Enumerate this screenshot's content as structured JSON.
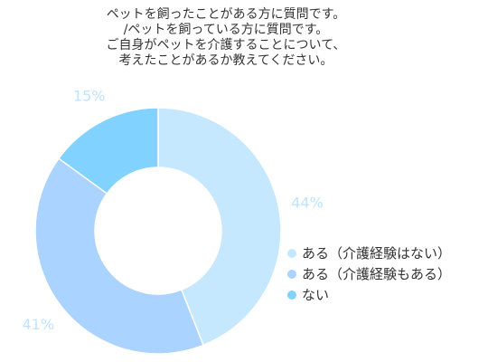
{
  "chart_data": {
    "type": "pie",
    "title_lines": [
      "ペットを飼ったことがある方に質問です。",
      "/ペットを飼っている方に質問です。",
      "ご自身がペットを介護することについて、",
      "考えたことがあるか教えてください。"
    ],
    "categories": [
      "ある（介護経験はない）",
      "ある（介護経験もある）",
      "ない"
    ],
    "values": [
      44,
      41,
      15
    ],
    "labels": [
      "44%",
      "41%",
      "15%"
    ],
    "colors": [
      "#c6e8ff",
      "#aad3ff",
      "#82d2ff"
    ],
    "label_color": "#bfe4ff",
    "donut": true,
    "legend_position": "right"
  }
}
